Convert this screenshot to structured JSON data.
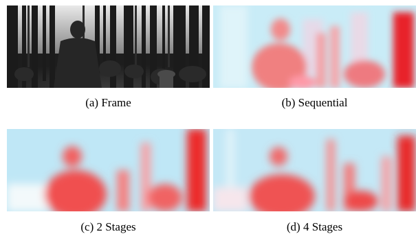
{
  "figure": {
    "panels": [
      {
        "id": "a",
        "caption": "(a) Frame"
      },
      {
        "id": "b",
        "caption": "(b) Sequential"
      },
      {
        "id": "c",
        "caption": "(c) 2 Stages"
      },
      {
        "id": "d",
        "caption": "(d) 4 Stages"
      }
    ]
  }
}
